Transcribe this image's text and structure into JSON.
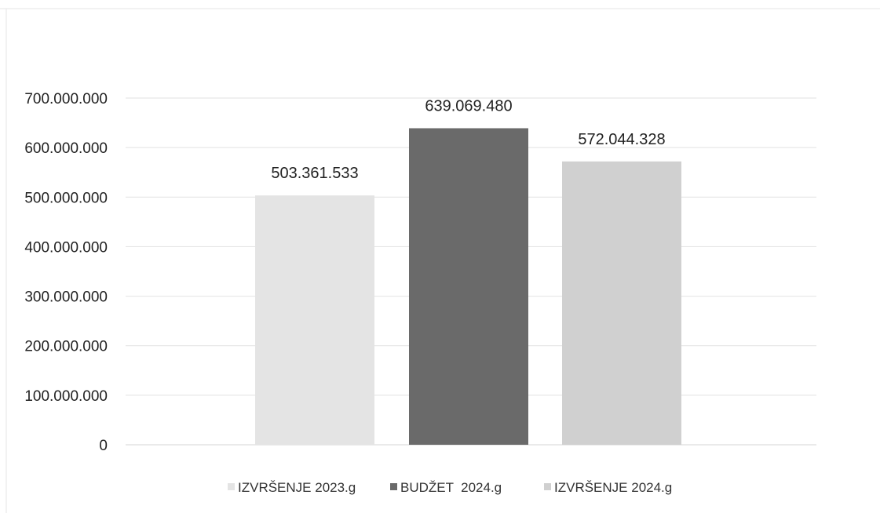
{
  "chart_data": {
    "type": "bar",
    "title": "",
    "xlabel": "",
    "ylabel": "",
    "categories": [
      "IZVRŠENJE 2023.g",
      "BUDŽET  2024.g",
      "IZVRŠENJE 2024.g"
    ],
    "values": [
      503361533,
      639069480,
      572044328
    ],
    "data_labels": [
      "503.361.533",
      "639.069.480",
      "572.044.328"
    ],
    "colors": [
      "#e4e4e4",
      "#6a6a6a",
      "#d0d0d0"
    ],
    "ylim": [
      0,
      700000000
    ],
    "yticks": [
      0,
      100000000,
      200000000,
      300000000,
      400000000,
      500000000,
      600000000,
      700000000
    ],
    "ytick_labels": [
      "0",
      "100.000.000",
      "200.000.000",
      "300.000.000",
      "400.000.000",
      "500.000.000",
      "600.000.000",
      "700.000.000"
    ],
    "grid": true,
    "legend": {
      "position": "bottom",
      "entries": [
        "IZVRŠENJE 2023.g",
        "BUDŽET  2024.g",
        "IZVRŠENJE 2024.g"
      ]
    }
  }
}
